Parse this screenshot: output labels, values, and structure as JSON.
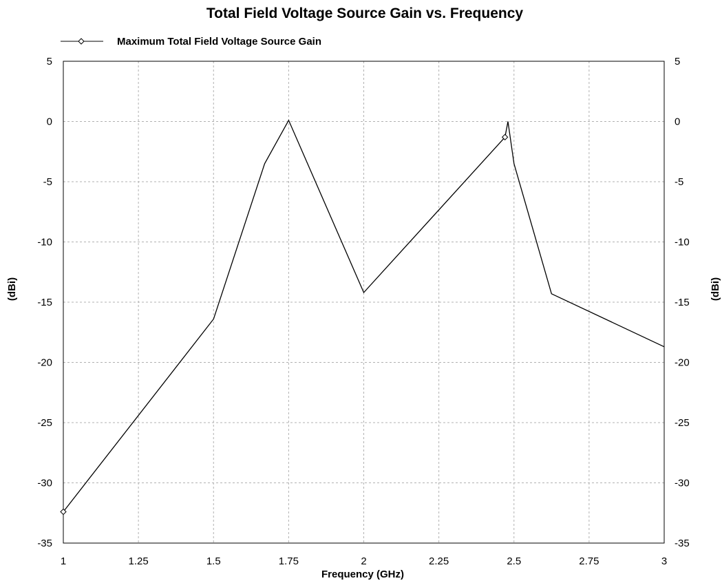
{
  "chart_data": {
    "type": "line",
    "title": "Total Field Voltage Source Gain vs. Frequency",
    "xlabel": "Frequency (GHz)",
    "ylabel": "(dBi)",
    "ylabel_right": "(dBi)",
    "xlim": [
      1,
      3
    ],
    "ylim": [
      -35,
      5
    ],
    "x_ticks": [
      1,
      1.25,
      1.5,
      1.75,
      2,
      2.25,
      2.5,
      2.75,
      3
    ],
    "x_tick_labels": [
      "1",
      "1.25",
      "1.5",
      "1.75",
      "2",
      "2.25",
      "2.5",
      "2.75",
      "3"
    ],
    "y_ticks": [
      5,
      0,
      -5,
      -10,
      -15,
      -20,
      -25,
      -30,
      -35
    ],
    "y_tick_labels": [
      "5",
      "0",
      "-5",
      "-10",
      "-15",
      "-20",
      "-25",
      "-30",
      "-35"
    ],
    "grid": true,
    "legend_position": "top-left",
    "series": [
      {
        "name": "Maximum Total Field Voltage Source Gain",
        "color": "#000000",
        "marker": "diamond",
        "x": [
          1.0,
          1.5,
          1.67,
          1.75,
          2.0,
          2.47,
          2.48,
          2.5,
          2.625,
          3.0
        ],
        "y": [
          -32.4,
          -16.4,
          -3.5,
          0.1,
          -14.2,
          -1.3,
          0.0,
          -3.5,
          -14.3,
          -18.7
        ],
        "marker_indices": [
          0,
          5
        ]
      }
    ]
  }
}
